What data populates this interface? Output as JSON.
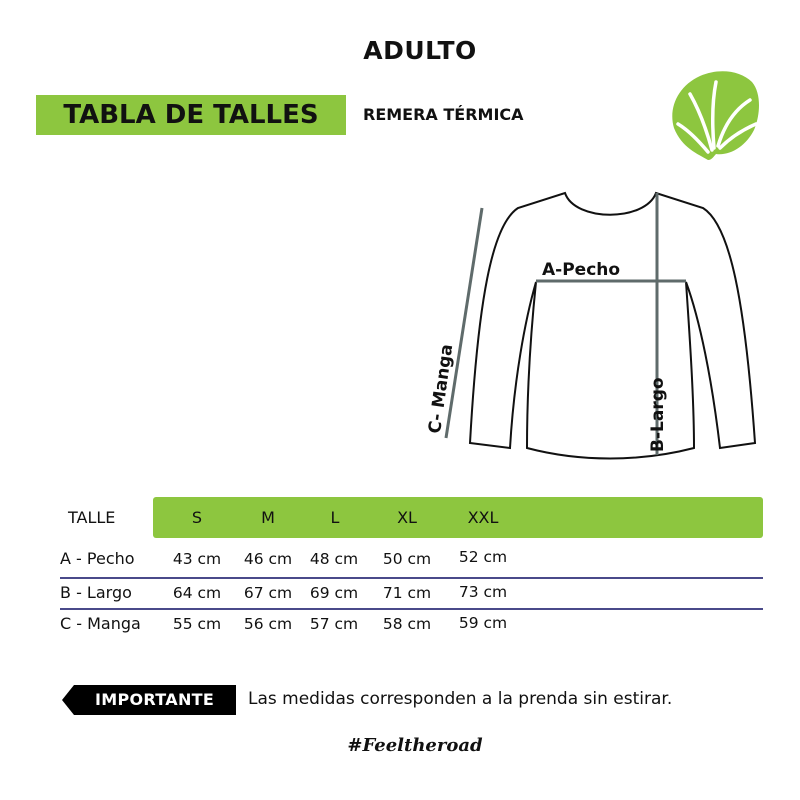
{
  "header": {
    "audience": "ADULTO",
    "title": "TABLA DE TALLES",
    "product": "REMERA TÉRMICA"
  },
  "diagram": {
    "chest_label": "A-Pecho",
    "length_label": "B-Largo",
    "sleeve_label": "C- Manga"
  },
  "table": {
    "header_label": "TALLE",
    "sizes": [
      "S",
      "M",
      "L",
      "XL",
      "XXL"
    ],
    "rows": [
      {
        "label": "A - Pecho",
        "values": [
          "43 cm",
          "46 cm",
          "48 cm",
          "50 cm",
          "52 cm"
        ]
      },
      {
        "label": "B - Largo",
        "values": [
          "64 cm",
          "67 cm",
          "69 cm",
          "71 cm",
          "73 cm"
        ]
      },
      {
        "label": "C - Manga",
        "values": [
          "55 cm",
          "56 cm",
          "57 cm",
          "58 cm",
          "59 cm"
        ]
      }
    ]
  },
  "footer": {
    "important_label": "IMPORTANTE",
    "note": "Las medidas corresponden a la prenda sin estirar.",
    "hashtag": "#Feeltheroad"
  },
  "icons": {
    "logo": "monstera-leaf-icon"
  },
  "colors": {
    "accent": "#8dc63f",
    "measure_line": "#5f6b6b",
    "divider": "#4a4a8a"
  }
}
